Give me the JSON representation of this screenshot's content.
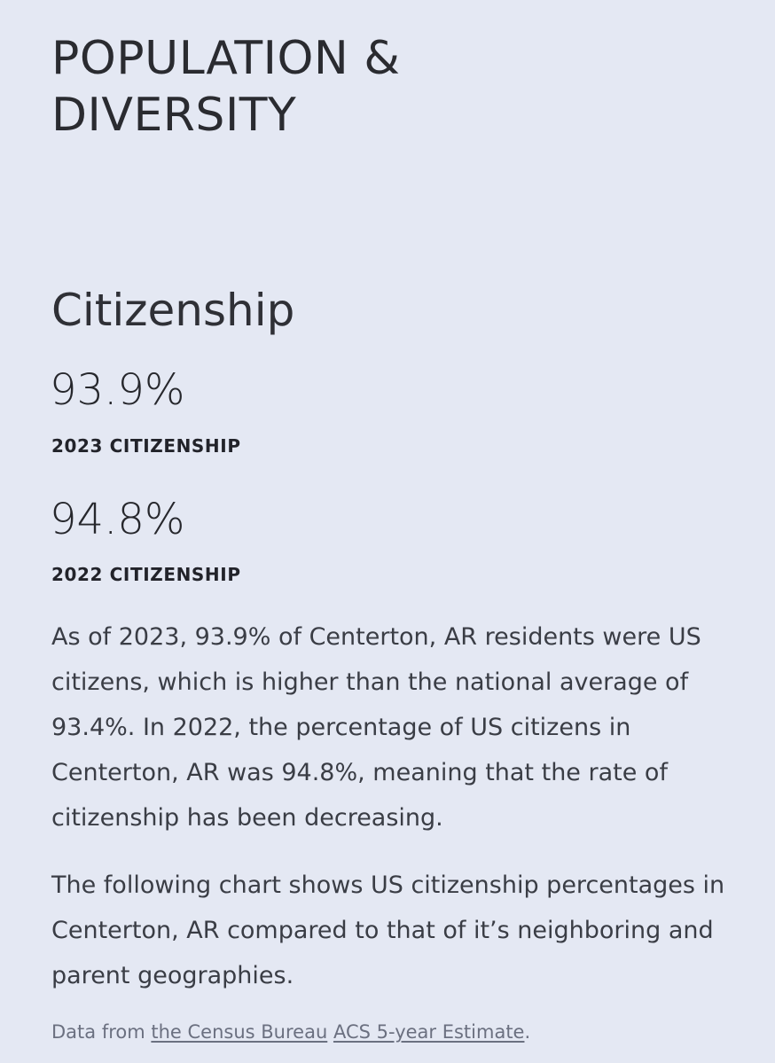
{
  "section": {
    "title_line1": "POPULATION &",
    "title_line2": "DIVERSITY"
  },
  "citizenship": {
    "heading": "Citizenship",
    "stats": [
      {
        "value": "93.9%",
        "label": "2023 CITIZENSHIP"
      },
      {
        "value": "94.8%",
        "label": "2022 CITIZENSHIP"
      }
    ],
    "paragraph1": "As of 2023, 93.9% of Centerton, AR residents were US citizens, which is higher than the national average of 93.4%. In 2022, the percentage of US citizens in Centerton, AR was 94.8%, meaning that the rate of citizenship has been decreasing.",
    "paragraph2": "The following chart shows US citizenship percentages in Centerton, AR compared to that of it’s neighboring and parent geographies."
  },
  "source": {
    "prefix": "Data from ",
    "link1": "the Census Bureau",
    "separator": " ",
    "link2": "ACS 5-year Estimate",
    "suffix": "."
  }
}
